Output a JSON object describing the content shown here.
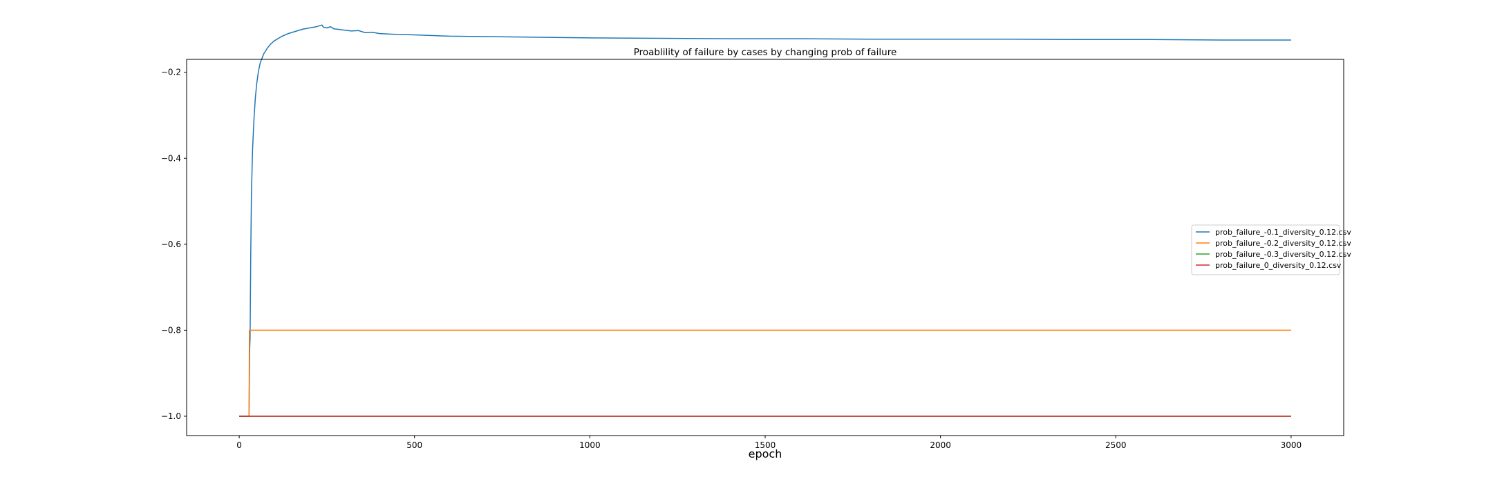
{
  "chart_data": {
    "type": "line",
    "title": "Proablility of failure by cases by changing prob of failure",
    "xlabel": "epoch",
    "ylabel": "",
    "xlim": [
      -150,
      3150
    ],
    "ylim": [
      -1.045,
      -0.17
    ],
    "xticks": [
      0,
      500,
      1000,
      1500,
      2000,
      2500,
      3000
    ],
    "yticks": [
      -1.0,
      -0.8,
      -0.6,
      -0.4,
      -0.2
    ],
    "ytick_labels": [
      "−1.0",
      "−0.8",
      "−0.6",
      "−0.4",
      "−0.2"
    ],
    "grid": false,
    "legend_position": "center-right",
    "series": [
      {
        "name": "prob_failure_-0.1_diversity_0.12.csv",
        "color": "#1f77b4",
        "x": [
          0,
          28,
          30,
          31,
          33,
          35,
          38,
          42,
          46,
          50,
          55,
          60,
          70,
          80,
          90,
          100,
          120,
          140,
          160,
          180,
          200,
          220,
          236,
          240,
          250,
          260,
          270,
          280,
          300,
          320,
          340,
          360,
          380,
          400,
          450,
          500,
          600,
          700,
          800,
          900,
          1000,
          1200,
          1400,
          1600,
          1800,
          2000,
          2200,
          2400,
          2600,
          2800,
          3000
        ],
        "y": [
          -1.0,
          -1.0,
          -0.84,
          -0.82,
          -0.62,
          -0.48,
          -0.38,
          -0.31,
          -0.26,
          -0.225,
          -0.197,
          -0.178,
          -0.157,
          -0.144,
          -0.134,
          -0.127,
          -0.117,
          -0.11,
          -0.105,
          -0.1,
          -0.097,
          -0.094,
          -0.09,
          -0.095,
          -0.097,
          -0.094,
          -0.099,
          -0.1,
          -0.102,
          -0.104,
          -0.103,
          -0.108,
          -0.107,
          -0.11,
          -0.112,
          -0.113,
          -0.116,
          -0.117,
          -0.118,
          -0.119,
          -0.12,
          -0.121,
          -0.122,
          -0.122,
          -0.123,
          -0.123,
          -0.123,
          -0.124,
          -0.124,
          -0.125,
          -0.125
        ]
      },
      {
        "name": "prob_failure_-0.2_diversity_0.12.csv",
        "color": "#ff7f0e",
        "x": [
          0,
          28,
          29,
          32,
          3000
        ],
        "y": [
          -1.0,
          -1.0,
          -0.8,
          -0.8,
          -0.8
        ]
      },
      {
        "name": "prob_failure_-0.3_diversity_0.12.csv",
        "color": "#2ca02c",
        "x": [
          0,
          3000
        ],
        "y": [
          -1.0,
          -1.0
        ]
      },
      {
        "name": "prob_failure_0_diversity_0.12.csv",
        "color": "#d62728",
        "x": [
          0,
          3000
        ],
        "y": [
          -1.0,
          -1.0
        ]
      }
    ]
  }
}
